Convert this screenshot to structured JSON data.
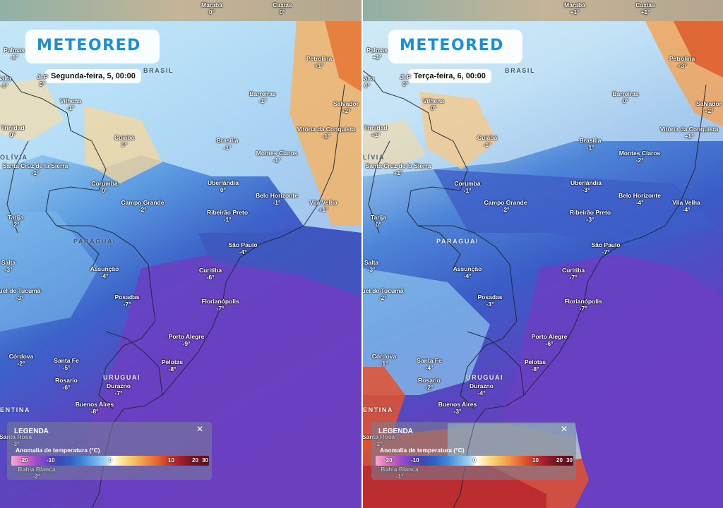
{
  "brand": {
    "logo_text": "METEORED",
    "accent": "#1a8fd8"
  },
  "panels": [
    {
      "id": "left",
      "date_label": "Segunda-feira, 5, 00:00",
      "regions": [
        "BRASIL",
        "PARAGUAI",
        "URUGUAI",
        "OLÍVIA",
        "ENTINA"
      ],
      "cities": [
        {
          "name": "Marabá",
          "temp": "0°"
        },
        {
          "name": "Caxias",
          "temp": "0°"
        },
        {
          "name": "Ji-P",
          "temp": "0°"
        },
        {
          "name": "Palmas",
          "temp": "-1°"
        },
        {
          "name": "Petrolina",
          "temp": "+1°"
        },
        {
          "name": "Salta",
          "temp": "-1°"
        },
        {
          "name": "Vilhena",
          "temp": "-1°"
        },
        {
          "name": "Barreiras",
          "temp": "-1°"
        },
        {
          "name": "Salvador",
          "temp": "+2°"
        },
        {
          "name": "Trinidad",
          "temp": "0°"
        },
        {
          "name": "Cuiabá",
          "temp": "0°"
        },
        {
          "name": "Vitória da Conquista",
          "temp": "-1°"
        },
        {
          "name": "Brasília",
          "temp": "-1°"
        },
        {
          "name": "Montes Claros",
          "temp": "-1°"
        },
        {
          "name": "Santa Cruz de la Sierra",
          "temp": "-1°"
        },
        {
          "name": "Uberlândia",
          "temp": "0°"
        },
        {
          "name": "Corumbá",
          "temp": "0°"
        },
        {
          "name": "Belo Horizonte",
          "temp": "-1°"
        },
        {
          "name": "Campo Grande",
          "temp": "-2°"
        },
        {
          "name": "Vila Velha",
          "temp": "+1°"
        },
        {
          "name": "Tarija",
          "temp": "-2°"
        },
        {
          "name": "Ribeirão Preto",
          "temp": "-1°"
        },
        {
          "name": "São Paulo",
          "temp": "-4°"
        },
        {
          "name": "Salta",
          "temp": "-3°"
        },
        {
          "name": "Assunção",
          "temp": "-4°"
        },
        {
          "name": "Curitiba",
          "temp": "-6°"
        },
        {
          "name": "uel de Tucumã",
          "temp": "-3°"
        },
        {
          "name": "Posadas",
          "temp": "-7°"
        },
        {
          "name": "Florianópolis",
          "temp": "-7°"
        },
        {
          "name": "Porto Alegre",
          "temp": "-9°"
        },
        {
          "name": "Córdova",
          "temp": "-2°"
        },
        {
          "name": "Santa Fe",
          "temp": "-5°"
        },
        {
          "name": "Pelotas",
          "temp": "-8°"
        },
        {
          "name": "Rosario",
          "temp": "-6°"
        },
        {
          "name": "Durazno",
          "temp": "-7°"
        },
        {
          "name": "Buenos Aires",
          "temp": "-8°"
        },
        {
          "name": "Santa Rosa",
          "temp": "-3°"
        },
        {
          "name": "Bahía Blanca",
          "temp": "-2°"
        }
      ]
    },
    {
      "id": "right",
      "date_label": "Terça-feira, 6, 00:00",
      "regions": [
        "BRASIL",
        "PARAGUAI",
        "URUGUAI",
        "LÍVIA",
        "ENTINA"
      ],
      "cities": [
        {
          "name": "Marabá",
          "temp": "+1°"
        },
        {
          "name": "Caxias",
          "temp": "+1°"
        },
        {
          "name": "Ji-P",
          "temp": "0°"
        },
        {
          "name": "Palmas",
          "temp": "+1°"
        },
        {
          "name": "Petrolina",
          "temp": "+3°"
        },
        {
          "name": "Salta",
          "temp": "0°"
        },
        {
          "name": "Vilhena",
          "temp": "0°"
        },
        {
          "name": "Barreiras",
          "temp": "0°"
        },
        {
          "name": "Salvador",
          "temp": "+2°"
        },
        {
          "name": "Trinidad",
          "temp": "+1°"
        },
        {
          "name": "Cuiabá",
          "temp": "-1°"
        },
        {
          "name": "Vitória da Conquista",
          "temp": "+1°"
        },
        {
          "name": "Brasília",
          "temp": "-1°"
        },
        {
          "name": "Montes Claros",
          "temp": "-2°"
        },
        {
          "name": "Santa Cruz de la Sierra",
          "temp": "+1°"
        },
        {
          "name": "Uberlândia",
          "temp": "-3°"
        },
        {
          "name": "Corumbá",
          "temp": "-1°"
        },
        {
          "name": "Belo Horizonte",
          "temp": "-4°"
        },
        {
          "name": "Campo Grande",
          "temp": "-2°"
        },
        {
          "name": "Vila Velha",
          "temp": "-4°"
        },
        {
          "name": "Tarija",
          "temp": "0°"
        },
        {
          "name": "Ribeirão Preto",
          "temp": "-3°"
        },
        {
          "name": "São Paulo",
          "temp": "-7°"
        },
        {
          "name": "Salta",
          "temp": "-3°"
        },
        {
          "name": "Assunção",
          "temp": "-4°"
        },
        {
          "name": "Curitiba",
          "temp": "-7°"
        },
        {
          "name": "uel de Tucumã",
          "temp": "-2°"
        },
        {
          "name": "Posadas",
          "temp": "-3°"
        },
        {
          "name": "Florianópolis",
          "temp": "-7°"
        },
        {
          "name": "Porto Alegre",
          "temp": "-6°"
        },
        {
          "name": "Córdova",
          "temp": "-1°"
        },
        {
          "name": "Santa Fe",
          "temp": "-4°"
        },
        {
          "name": "Pelotas",
          "temp": "-8°"
        },
        {
          "name": "Rosario",
          "temp": "-2°"
        },
        {
          "name": "Durazno",
          "temp": "-4°"
        },
        {
          "name": "Buenos Aires",
          "temp": "-3°"
        },
        {
          "name": "Santa Rosa",
          "temp": "-2°"
        },
        {
          "name": "Bahía Blanca",
          "temp": "-1°"
        }
      ]
    }
  ],
  "legend": {
    "title": "LEGENDA",
    "close_icon": "close-icon",
    "subtitle": "Anomalia de temperatura (°C)",
    "ticks": [
      "-20",
      "-10",
      "0",
      "10",
      "20",
      "30"
    ]
  },
  "colors": {
    "cold_deep": "#5b3bbf",
    "cold": "#2f62c4",
    "cool": "#8cc6ee",
    "warm": "#f2b46a",
    "hot": "#e0532c"
  }
}
